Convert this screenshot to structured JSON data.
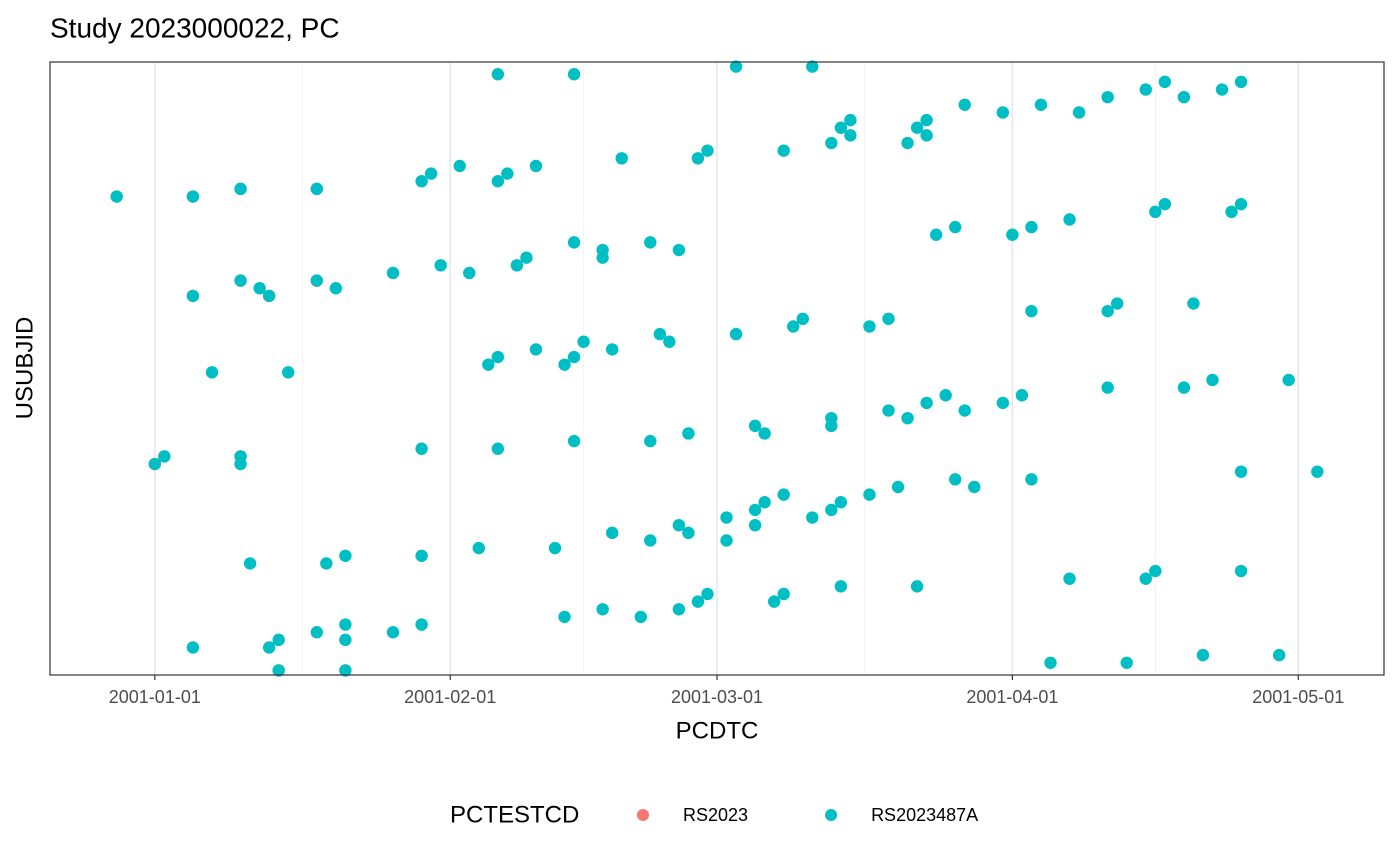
{
  "chart_data": {
    "type": "scatter",
    "title": "Study 2023000022, PC",
    "x_label": "PCDTC",
    "y_label": "USUBJID",
    "legend_title": "PCTESTCD",
    "legend_position": "bottom",
    "grid": true,
    "xlim": [
      "2000-12-21",
      "2001-05-10"
    ],
    "xticks": [
      "2001-01-01",
      "2001-02-01",
      "2001-03-01",
      "2001-04-01",
      "2001-05-01"
    ],
    "ylim": [
      0.4,
      80.6
    ],
    "series": [
      {
        "name": "RS2023",
        "color": "#f8766d",
        "x": [
          "2000-12-28",
          "2001-01-05",
          "2001-01-10",
          "2001-01-18",
          "2001-01-10",
          "2001-01-18",
          "2001-01-05",
          "2001-01-13",
          "2001-01-02",
          "2001-01-10",
          "2001-01-01",
          "2001-01-14",
          "2001-01-21"
        ],
        "values": [
          63,
          63,
          64,
          64,
          52,
          52,
          50,
          50,
          29,
          29,
          28,
          1,
          1
        ]
      },
      {
        "name": "RS2023487A",
        "color": "#00bfc4",
        "x": [
          "2001-03-03",
          "2001-03-11",
          "2001-02-06",
          "2001-02-14",
          "2001-04-17",
          "2001-04-25",
          "2001-04-15",
          "2001-04-23",
          "2001-04-11",
          "2001-04-19",
          "2001-03-27",
          "2001-04-04",
          "2001-03-31",
          "2001-04-08",
          "2001-03-15",
          "2001-03-23",
          "2001-03-14",
          "2001-03-22",
          "2001-03-15",
          "2001-03-23",
          "2001-03-13",
          "2001-03-21",
          "2001-02-28",
          "2001-03-08",
          "2001-02-19",
          "2001-02-27",
          "2001-02-02",
          "2001-02-10",
          "2001-01-30",
          "2001-02-07",
          "2001-01-29",
          "2001-02-06",
          "2001-01-10",
          "2001-01-18",
          "2000-12-28",
          "2001-01-05",
          "2001-04-17",
          "2001-04-25",
          "2001-04-16",
          "2001-04-24",
          "2001-04-07",
          "2001-03-26",
          "2001-04-03",
          "2001-03-24",
          "2001-04-01",
          "2001-02-14",
          "2001-02-22",
          "2001-02-17",
          "2001-02-25",
          "2001-02-09",
          "2001-02-17",
          "2001-01-31",
          "2001-02-08",
          "2001-01-26",
          "2001-02-03",
          "2001-01-10",
          "2001-01-18",
          "2001-01-12",
          "2001-01-20",
          "2001-01-05",
          "2001-01-13",
          "2001-04-12",
          "2001-04-20",
          "2001-04-03",
          "2001-04-11",
          "2001-03-10",
          "2001-03-19",
          "2001-03-09",
          "2001-03-17",
          "2001-02-23",
          "2001-03-03",
          "2001-02-15",
          "2001-02-24",
          "2001-02-10",
          "2001-02-18",
          "2001-02-06",
          "2001-02-14",
          "2001-02-05",
          "2001-02-13",
          "2001-01-07",
          "2001-01-15",
          "2001-04-22",
          "2001-04-30",
          "2001-04-11",
          "2001-04-19",
          "2001-03-25",
          "2001-04-02",
          "2001-03-23",
          "2001-03-31",
          "2001-03-19",
          "2001-03-27",
          "2001-03-13",
          "2001-03-21",
          "2001-03-05",
          "2001-03-13",
          "2001-02-26",
          "2001-03-06",
          "2001-02-14",
          "2001-02-22",
          "2001-01-29",
          "2001-02-06",
          "2001-01-02",
          "2001-01-10",
          "2001-01-01",
          "2001-01-10",
          "2001-04-25",
          "2001-05-03",
          "2001-03-26",
          "2001-04-03",
          "2001-03-20",
          "2001-03-28",
          "2001-03-08",
          "2001-03-17",
          "2001-03-06",
          "2001-03-14",
          "2001-03-05",
          "2001-03-13",
          "2001-03-02",
          "2001-03-11",
          "2001-02-25",
          "2001-03-05",
          "2001-02-18",
          "2001-02-26",
          "2001-02-22",
          "2001-03-02",
          "2001-02-04",
          "2001-02-12",
          "2001-01-21",
          "2001-01-29",
          "2001-01-11",
          "2001-01-19",
          "2001-04-16",
          "2001-04-25",
          "2001-04-07",
          "2001-04-15",
          "2001-03-14",
          "2001-03-22",
          "2001-02-28",
          "2001-03-08",
          "2001-02-27",
          "2001-03-07",
          "2001-02-17",
          "2001-02-25",
          "2001-02-13",
          "2001-02-21",
          "2001-01-21",
          "2001-01-29",
          "2001-01-18",
          "2001-01-26",
          "2001-01-14",
          "2001-01-21",
          "2001-01-05",
          "2001-01-13",
          "2001-04-21",
          "2001-04-29",
          "2001-04-05",
          "2001-04-13",
          "2001-01-14",
          "2001-01-21"
        ],
        "values": [
          80,
          80,
          79,
          79,
          78,
          78,
          77,
          77,
          76,
          76,
          75,
          75,
          74,
          74,
          73,
          73,
          72,
          72,
          71,
          71,
          70,
          70,
          69,
          69,
          68,
          68,
          67,
          67,
          66,
          66,
          65,
          65,
          64,
          64,
          63,
          63,
          62,
          62,
          61,
          61,
          60,
          59,
          59,
          58,
          58,
          57,
          57,
          56,
          56,
          55,
          55,
          54,
          54,
          53,
          53,
          52,
          52,
          51,
          51,
          50,
          50,
          49,
          49,
          48,
          48,
          47,
          47,
          46,
          46,
          45,
          45,
          44,
          44,
          43,
          43,
          42,
          42,
          41,
          41,
          40,
          40,
          39,
          39,
          38,
          38,
          37,
          37,
          36,
          36,
          35,
          35,
          34,
          34,
          33,
          33,
          32,
          32,
          31,
          31,
          30,
          30,
          29,
          29,
          28,
          28,
          27,
          27,
          26,
          26,
          25,
          25,
          24,
          24,
          23,
          23,
          22,
          22,
          21,
          21,
          20,
          20,
          19,
          19,
          18,
          18,
          17,
          17,
          16,
          16,
          15,
          15,
          14,
          14,
          13,
          13,
          12,
          12,
          11,
          11,
          10,
          10,
          9,
          9,
          8,
          8,
          7,
          7,
          6,
          6,
          5,
          5,
          4,
          4,
          3,
          3,
          2,
          2,
          1,
          1
        ]
      }
    ]
  }
}
